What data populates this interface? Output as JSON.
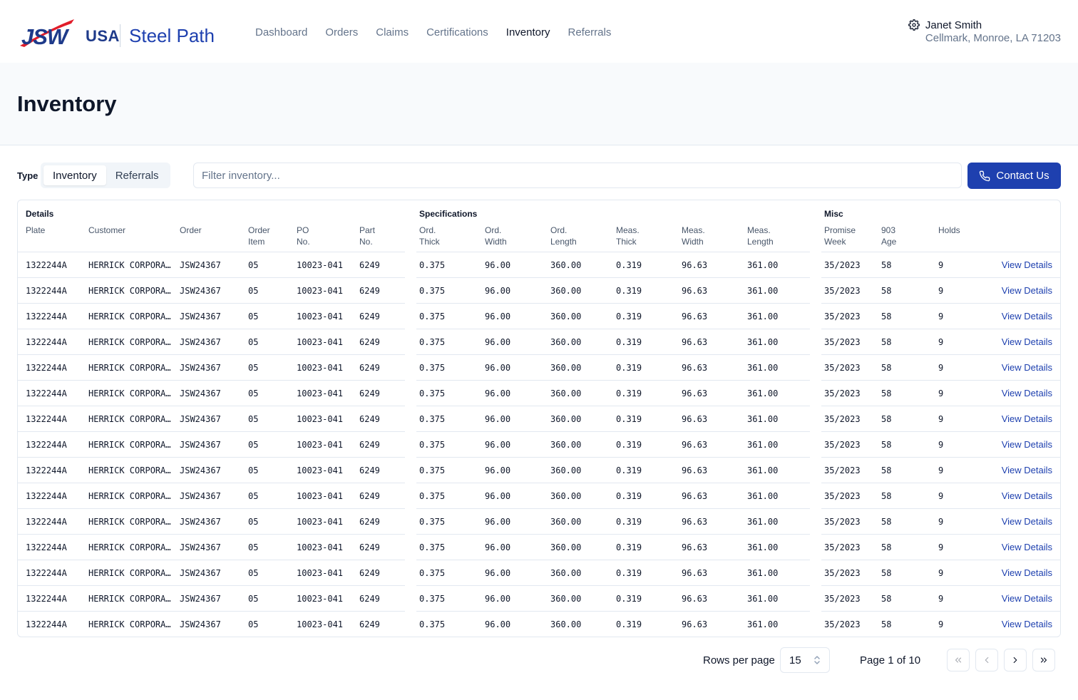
{
  "brand": {
    "logo_text": "JSW",
    "region": "USA",
    "product": "Steel Path",
    "accent": "#1e40af",
    "logo_red": "#e11d2a"
  },
  "nav": [
    {
      "label": "Dashboard"
    },
    {
      "label": "Orders"
    },
    {
      "label": "Claims"
    },
    {
      "label": "Certifications"
    },
    {
      "label": "Inventory",
      "active": true
    },
    {
      "label": "Referrals"
    }
  ],
  "user": {
    "icon": "gear-icon",
    "name": "Janet Smith",
    "location": "Cellmark, Monroe, LA 71203"
  },
  "page": {
    "title": "Inventory"
  },
  "toolbar": {
    "type_label": "Type",
    "type_options": [
      "Inventory",
      "Referrals"
    ],
    "type_selected": "Inventory",
    "filter_placeholder": "Filter inventory...",
    "filter_value": "",
    "contact_label": "Contact Us",
    "contact_icon": "phone-icon"
  },
  "table": {
    "groups": {
      "details": "Details",
      "specifications": "Specifications",
      "misc": "Misc"
    },
    "columns": {
      "plate": "Plate",
      "customer": "Customer",
      "order": "Order",
      "order_item": "Order\nItem",
      "po_no": "PO\nNo.",
      "part_no": "Part\nNo.",
      "ord_thick": "Ord.\nThick",
      "ord_width": "Ord.\nWidth",
      "ord_length": "Ord.\nLength",
      "meas_thick": "Meas.\nThick",
      "meas_width": "Meas.\nWidth",
      "meas_length": "Meas.\nLength",
      "promise_week": "Promise\nWeek",
      "age_903": "903\nAge",
      "holds": "Holds"
    },
    "row_action": "View Details",
    "rows": [
      [
        "1322244A",
        "HERRICK CORPORATION",
        "JSW24367",
        "05",
        "10023-041",
        "6249",
        "0.375",
        "96.00",
        "360.00",
        "0.319",
        "96.63",
        "361.00",
        "35/2023",
        "58",
        "9"
      ],
      [
        "1322244A",
        "HERRICK CORPORATION",
        "JSW24367",
        "05",
        "10023-041",
        "6249",
        "0.375",
        "96.00",
        "360.00",
        "0.319",
        "96.63",
        "361.00",
        "35/2023",
        "58",
        "9"
      ],
      [
        "1322244A",
        "HERRICK CORPORATION",
        "JSW24367",
        "05",
        "10023-041",
        "6249",
        "0.375",
        "96.00",
        "360.00",
        "0.319",
        "96.63",
        "361.00",
        "35/2023",
        "58",
        "9"
      ],
      [
        "1322244A",
        "HERRICK CORPORATION",
        "JSW24367",
        "05",
        "10023-041",
        "6249",
        "0.375",
        "96.00",
        "360.00",
        "0.319",
        "96.63",
        "361.00",
        "35/2023",
        "58",
        "9"
      ],
      [
        "1322244A",
        "HERRICK CORPORATION",
        "JSW24367",
        "05",
        "10023-041",
        "6249",
        "0.375",
        "96.00",
        "360.00",
        "0.319",
        "96.63",
        "361.00",
        "35/2023",
        "58",
        "9"
      ],
      [
        "1322244A",
        "HERRICK CORPORATION",
        "JSW24367",
        "05",
        "10023-041",
        "6249",
        "0.375",
        "96.00",
        "360.00",
        "0.319",
        "96.63",
        "361.00",
        "35/2023",
        "58",
        "9"
      ],
      [
        "1322244A",
        "HERRICK CORPORATION",
        "JSW24367",
        "05",
        "10023-041",
        "6249",
        "0.375",
        "96.00",
        "360.00",
        "0.319",
        "96.63",
        "361.00",
        "35/2023",
        "58",
        "9"
      ],
      [
        "1322244A",
        "HERRICK CORPORATION",
        "JSW24367",
        "05",
        "10023-041",
        "6249",
        "0.375",
        "96.00",
        "360.00",
        "0.319",
        "96.63",
        "361.00",
        "35/2023",
        "58",
        "9"
      ],
      [
        "1322244A",
        "HERRICK CORPORATION",
        "JSW24367",
        "05",
        "10023-041",
        "6249",
        "0.375",
        "96.00",
        "360.00",
        "0.319",
        "96.63",
        "361.00",
        "35/2023",
        "58",
        "9"
      ],
      [
        "1322244A",
        "HERRICK CORPORATION",
        "JSW24367",
        "05",
        "10023-041",
        "6249",
        "0.375",
        "96.00",
        "360.00",
        "0.319",
        "96.63",
        "361.00",
        "35/2023",
        "58",
        "9"
      ],
      [
        "1322244A",
        "HERRICK CORPORATION",
        "JSW24367",
        "05",
        "10023-041",
        "6249",
        "0.375",
        "96.00",
        "360.00",
        "0.319",
        "96.63",
        "361.00",
        "35/2023",
        "58",
        "9"
      ],
      [
        "1322244A",
        "HERRICK CORPORATION",
        "JSW24367",
        "05",
        "10023-041",
        "6249",
        "0.375",
        "96.00",
        "360.00",
        "0.319",
        "96.63",
        "361.00",
        "35/2023",
        "58",
        "9"
      ],
      [
        "1322244A",
        "HERRICK CORPORATION",
        "JSW24367",
        "05",
        "10023-041",
        "6249",
        "0.375",
        "96.00",
        "360.00",
        "0.319",
        "96.63",
        "361.00",
        "35/2023",
        "58",
        "9"
      ],
      [
        "1322244A",
        "HERRICK CORPORATION",
        "JSW24367",
        "05",
        "10023-041",
        "6249",
        "0.375",
        "96.00",
        "360.00",
        "0.319",
        "96.63",
        "361.00",
        "35/2023",
        "58",
        "9"
      ],
      [
        "1322244A",
        "HERRICK CORPORATION",
        "JSW24367",
        "05",
        "10023-041",
        "6249",
        "0.375",
        "96.00",
        "360.00",
        "0.319",
        "96.63",
        "361.00",
        "35/2023",
        "58",
        "9"
      ]
    ]
  },
  "pagination": {
    "rows_per_page_label": "Rows per page",
    "rows_per_page": "15",
    "page_info": "Page 1 of 10",
    "buttons": [
      "first-page-icon",
      "prev-page-icon",
      "next-page-icon",
      "last-page-icon"
    ]
  }
}
